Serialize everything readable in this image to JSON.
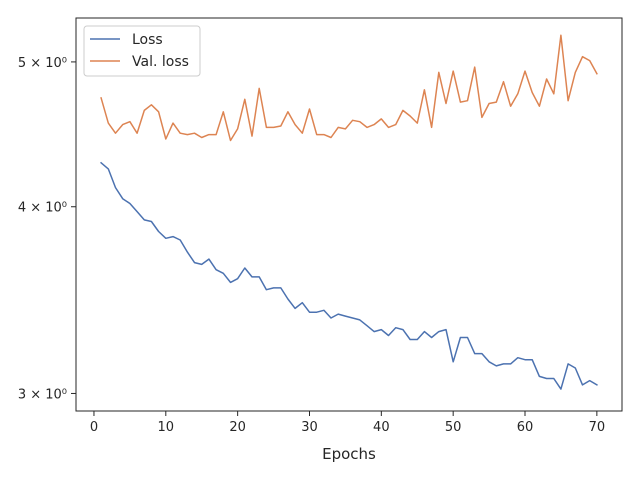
{
  "chart_data": {
    "type": "line",
    "xlabel": "Epochs",
    "ylabel": "",
    "yscale": "log",
    "xlim": [
      -2.5,
      73.5
    ],
    "ylim": [
      2.92,
      5.35
    ],
    "xticks": [
      0,
      10,
      20,
      30,
      40,
      50,
      60,
      70
    ],
    "yticks": [
      {
        "value": 3,
        "label": "3 × 10⁰"
      },
      {
        "value": 4,
        "label": "4 × 10⁰"
      },
      {
        "value": 5,
        "label": "5 × 10⁰"
      }
    ],
    "grid": false,
    "legend_position": "top-left",
    "x": [
      1,
      2,
      3,
      4,
      5,
      6,
      7,
      8,
      9,
      10,
      11,
      12,
      13,
      14,
      15,
      16,
      17,
      18,
      19,
      20,
      21,
      22,
      23,
      24,
      25,
      26,
      27,
      28,
      29,
      30,
      31,
      32,
      33,
      34,
      35,
      36,
      37,
      38,
      39,
      40,
      41,
      42,
      43,
      44,
      45,
      46,
      47,
      48,
      49,
      50,
      51,
      52,
      53,
      54,
      55,
      56,
      57,
      58,
      59,
      60,
      61,
      62,
      63,
      64,
      65,
      66,
      67,
      68,
      69,
      70
    ],
    "series": [
      {
        "name": "Loss",
        "color": "#4c72b0",
        "values": [
          4.28,
          4.24,
          4.12,
          4.05,
          4.02,
          3.97,
          3.92,
          3.91,
          3.85,
          3.81,
          3.82,
          3.8,
          3.73,
          3.67,
          3.66,
          3.69,
          3.63,
          3.61,
          3.56,
          3.58,
          3.64,
          3.59,
          3.59,
          3.52,
          3.53,
          3.53,
          3.47,
          3.42,
          3.45,
          3.4,
          3.4,
          3.41,
          3.37,
          3.39,
          3.38,
          3.37,
          3.36,
          3.33,
          3.3,
          3.31,
          3.28,
          3.32,
          3.31,
          3.26,
          3.26,
          3.3,
          3.27,
          3.3,
          3.31,
          3.15,
          3.27,
          3.27,
          3.19,
          3.19,
          3.15,
          3.13,
          3.14,
          3.14,
          3.17,
          3.16,
          3.16,
          3.08,
          3.07,
          3.07,
          3.02,
          3.14,
          3.12,
          3.04,
          3.06,
          3.04
        ]
      },
      {
        "name": "Val. loss",
        "color": "#dd8452",
        "values": [
          4.73,
          4.55,
          4.48,
          4.54,
          4.56,
          4.48,
          4.64,
          4.68,
          4.63,
          4.44,
          4.55,
          4.48,
          4.47,
          4.48,
          4.45,
          4.47,
          4.47,
          4.63,
          4.43,
          4.51,
          4.72,
          4.46,
          4.8,
          4.52,
          4.52,
          4.53,
          4.63,
          4.54,
          4.48,
          4.65,
          4.47,
          4.47,
          4.45,
          4.52,
          4.51,
          4.57,
          4.56,
          4.52,
          4.54,
          4.58,
          4.52,
          4.54,
          4.64,
          4.6,
          4.55,
          4.79,
          4.52,
          4.92,
          4.69,
          4.93,
          4.7,
          4.71,
          4.96,
          4.59,
          4.69,
          4.7,
          4.85,
          4.67,
          4.76,
          4.93,
          4.77,
          4.67,
          4.87,
          4.76,
          5.21,
          4.71,
          4.92,
          5.04,
          5.01,
          4.91
        ]
      }
    ]
  }
}
